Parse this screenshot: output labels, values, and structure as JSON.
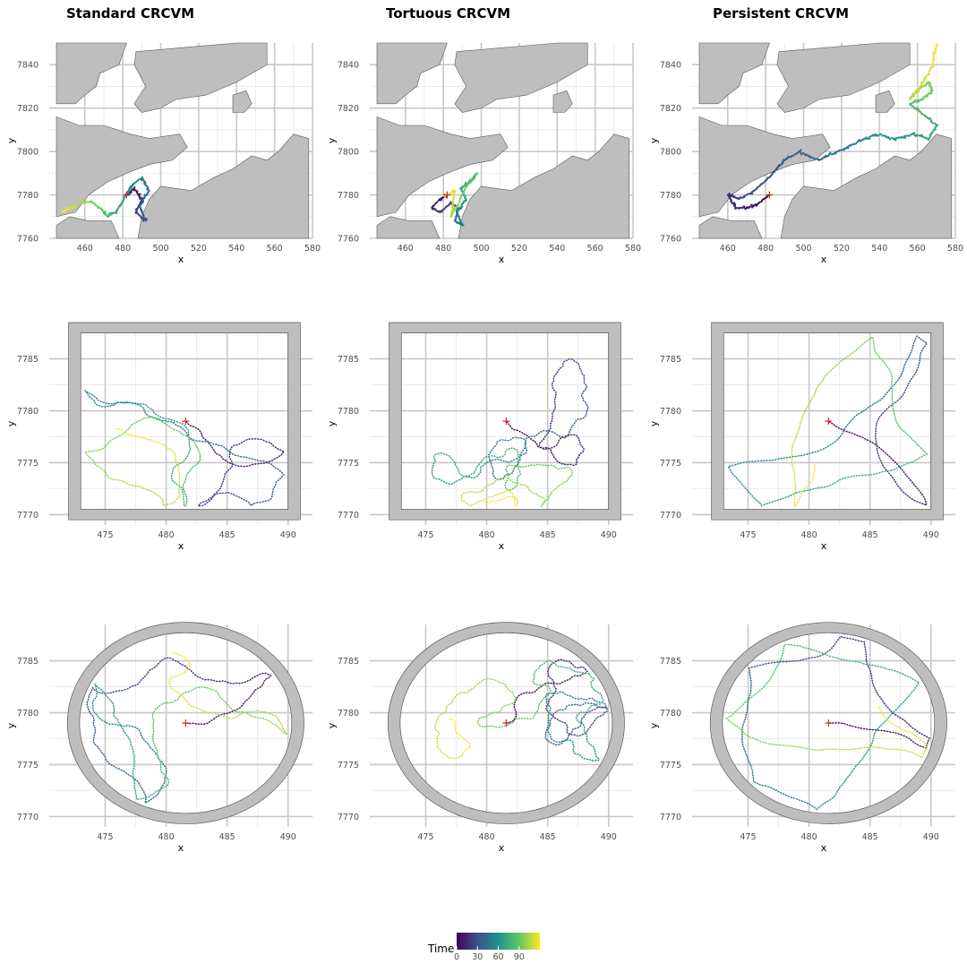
{
  "columns": [
    "Standard CRCVM",
    "Tortuous CRCVM",
    "Persistent CRCVM"
  ],
  "legend": {
    "title": "Time",
    "ticks": [
      "0",
      "30",
      "60",
      "90"
    ],
    "tick_values": [
      0,
      30,
      60,
      90
    ],
    "range": [
      0,
      120
    ]
  },
  "colors": {
    "land": "#bebebe",
    "land_stroke": "#595959",
    "grid_major": "#c8c8c8",
    "grid_minor": "#ebebeb",
    "start_marker": "#d62728",
    "viridis": [
      "#440154",
      "#3b528b",
      "#21908d",
      "#5dc863",
      "#fde725"
    ]
  },
  "chart_data": [
    {
      "type": "line",
      "row": "fjord",
      "column": "Standard CRCVM",
      "xlabel": "x",
      "ylabel": "y",
      "xlim": [
        445,
        580
      ],
      "ylim": [
        7760,
        7850
      ],
      "xticks": [
        "460",
        "480",
        "500",
        "520",
        "540",
        "560",
        "580"
      ],
      "yticks": [
        "7760",
        "7780",
        "7800",
        "7820",
        "7840"
      ],
      "start": [
        482,
        7780
      ],
      "series": [
        {
          "color_by": "time",
          "x": [
            482,
            486,
            490,
            487,
            492,
            489,
            494,
            490,
            484,
            480,
            476,
            472,
            468,
            463,
            458,
            452,
            448
          ],
          "y": [
            7780,
            7783,
            7778,
            7772,
            7768,
            7775,
            7782,
            7788,
            7784,
            7777,
            7772,
            7770,
            7774,
            7777,
            7776,
            7774,
            7772
          ]
        }
      ]
    },
    {
      "type": "line",
      "row": "fjord",
      "column": "Tortuous CRCVM",
      "xlabel": "x",
      "ylabel": "y",
      "xlim": [
        445,
        580
      ],
      "ylim": [
        7760,
        7850
      ],
      "xticks": [
        "460",
        "480",
        "500",
        "520",
        "540",
        "560",
        "580"
      ],
      "yticks": [
        "7760",
        "7780",
        "7800",
        "7820",
        "7840"
      ],
      "start": [
        482,
        7780
      ],
      "series": [
        {
          "color_by": "time",
          "x": [
            482,
            478,
            474,
            478,
            484,
            488,
            486,
            490,
            487,
            492,
            489,
            494,
            498,
            492,
            488,
            484,
            486,
            480
          ],
          "y": [
            7780,
            7778,
            7774,
            7772,
            7776,
            7774,
            7768,
            7766,
            7772,
            7778,
            7783,
            7786,
            7790,
            7784,
            7776,
            7770,
            7782,
            7779
          ]
        }
      ]
    },
    {
      "type": "line",
      "row": "fjord",
      "column": "Persistent CRCVM",
      "xlabel": "x",
      "ylabel": "y",
      "xlim": [
        445,
        580
      ],
      "ylim": [
        7760,
        7850
      ],
      "xticks": [
        "460",
        "480",
        "500",
        "520",
        "540",
        "560",
        "580"
      ],
      "yticks": [
        "7760",
        "7780",
        "7800",
        "7820",
        "7840"
      ],
      "start": [
        482,
        7780
      ],
      "series": [
        {
          "color_by": "time",
          "x": [
            482,
            476,
            470,
            464,
            460,
            466,
            474,
            482,
            490,
            498,
            508,
            518,
            528,
            538,
            548,
            558,
            566,
            570,
            562,
            556,
            562,
            568,
            566,
            560,
            556,
            562,
            568,
            570
          ],
          "y": [
            7780,
            7776,
            7774,
            7774,
            7780,
            7778,
            7782,
            7788,
            7796,
            7800,
            7796,
            7800,
            7804,
            7808,
            7806,
            7808,
            7806,
            7812,
            7818,
            7822,
            7824,
            7828,
            7832,
            7828,
            7824,
            7830,
            7840,
            7850
          ]
        }
      ]
    },
    {
      "type": "scatter",
      "row": "square",
      "column": "Standard CRCVM",
      "xlabel": "x",
      "ylabel": "y",
      "xlim": [
        471,
        492
      ],
      "ylim": [
        7769,
        7788.5
      ],
      "xticks": [
        "475",
        "480",
        "485",
        "490"
      ],
      "yticks": [
        "7770",
        "7775",
        "7780",
        "7785"
      ],
      "start": [
        481.6,
        7779
      ],
      "domain_shape": "square",
      "domain": {
        "x": [
          473,
          490
        ],
        "y": [
          7770.5,
          7787.5
        ]
      }
    },
    {
      "type": "scatter",
      "row": "square",
      "column": "Tortuous CRCVM",
      "xlabel": "x",
      "ylabel": "y",
      "xlim": [
        471,
        492
      ],
      "ylim": [
        7769,
        7788.5
      ],
      "xticks": [
        "475",
        "480",
        "485",
        "490"
      ],
      "yticks": [
        "7770",
        "7775",
        "7780",
        "7785"
      ],
      "start": [
        481.6,
        7779
      ],
      "domain_shape": "square",
      "domain": {
        "x": [
          473,
          490
        ],
        "y": [
          7770.5,
          7787.5
        ]
      }
    },
    {
      "type": "scatter",
      "row": "square",
      "column": "Persistent CRCVM",
      "xlabel": "x",
      "ylabel": "y",
      "xlim": [
        471,
        492
      ],
      "ylim": [
        7769,
        7788.5
      ],
      "xticks": [
        "475",
        "480",
        "485",
        "490"
      ],
      "yticks": [
        "7770",
        "7775",
        "7780",
        "7785"
      ],
      "start": [
        481.6,
        7779
      ],
      "domain_shape": "square",
      "domain": {
        "x": [
          473,
          490
        ],
        "y": [
          7770.5,
          7787.5
        ]
      }
    },
    {
      "type": "scatter",
      "row": "circle",
      "column": "Standard CRCVM",
      "xlabel": "x",
      "ylabel": "y",
      "xlim": [
        471,
        492
      ],
      "ylim": [
        7769,
        7788.5
      ],
      "xticks": [
        "475",
        "480",
        "485",
        "490"
      ],
      "yticks": [
        "7770",
        "7775",
        "7780",
        "7785"
      ],
      "start": [
        481.6,
        7779
      ],
      "domain_shape": "circle",
      "domain": {
        "center": [
          481.6,
          7779
        ],
        "radius": 8.7
      }
    },
    {
      "type": "scatter",
      "row": "circle",
      "column": "Tortuous CRCVM",
      "xlabel": "x",
      "ylabel": "y",
      "xlim": [
        471,
        492
      ],
      "ylim": [
        7769,
        7788.5
      ],
      "xticks": [
        "475",
        "480",
        "485",
        "490"
      ],
      "yticks": [
        "7770",
        "7775",
        "7780",
        "7785"
      ],
      "start": [
        481.6,
        7779
      ],
      "domain_shape": "circle",
      "domain": {
        "center": [
          481.6,
          7779
        ],
        "radius": 8.7
      }
    },
    {
      "type": "scatter",
      "row": "circle",
      "column": "Persistent CRCVM",
      "xlabel": "x",
      "ylabel": "y",
      "xlim": [
        471,
        492
      ],
      "ylim": [
        7769,
        7788.5
      ],
      "xticks": [
        "475",
        "480",
        "485",
        "490"
      ],
      "yticks": [
        "7770",
        "7775",
        "7780",
        "7785"
      ],
      "start": [
        481.6,
        7779
      ],
      "domain_shape": "circle",
      "domain": {
        "center": [
          481.6,
          7779
        ],
        "radius": 8.7
      }
    }
  ]
}
